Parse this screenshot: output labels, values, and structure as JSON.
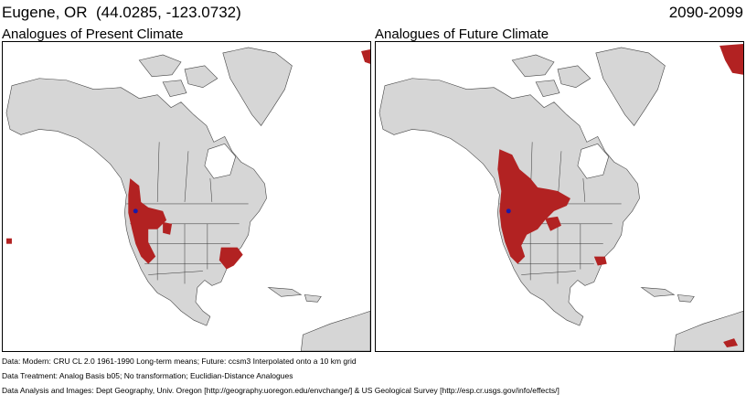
{
  "header": {
    "location": "Eugene, OR  (44.0285, -123.0732)",
    "period": "2090-2099"
  },
  "panels": [
    {
      "title": "Analogues of Present Climate"
    },
    {
      "title": "Analogues of Future Climate"
    }
  ],
  "credits": [
    "Data:  Modern: CRU CL 2.0 1961-1990 Long-term means; Future: ccsm3 Interpolated onto a 10 km grid",
    "Data Treatment:  Analog Basis b05; No transformation; Euclidian-Distance Analogues",
    "Data Analysis and Images:  Dept Geography, Univ. Oregon [http://geography.uoregon.edu/envchange/] & US Geological Survey [http://esp.cr.usgs.gov/info/effects/]"
  ],
  "colors": {
    "land": "#d6d6d6",
    "ocean": "#ffffff",
    "analog": "#b22222",
    "target_point": "#1a1aa8",
    "borders": "#000000"
  }
}
